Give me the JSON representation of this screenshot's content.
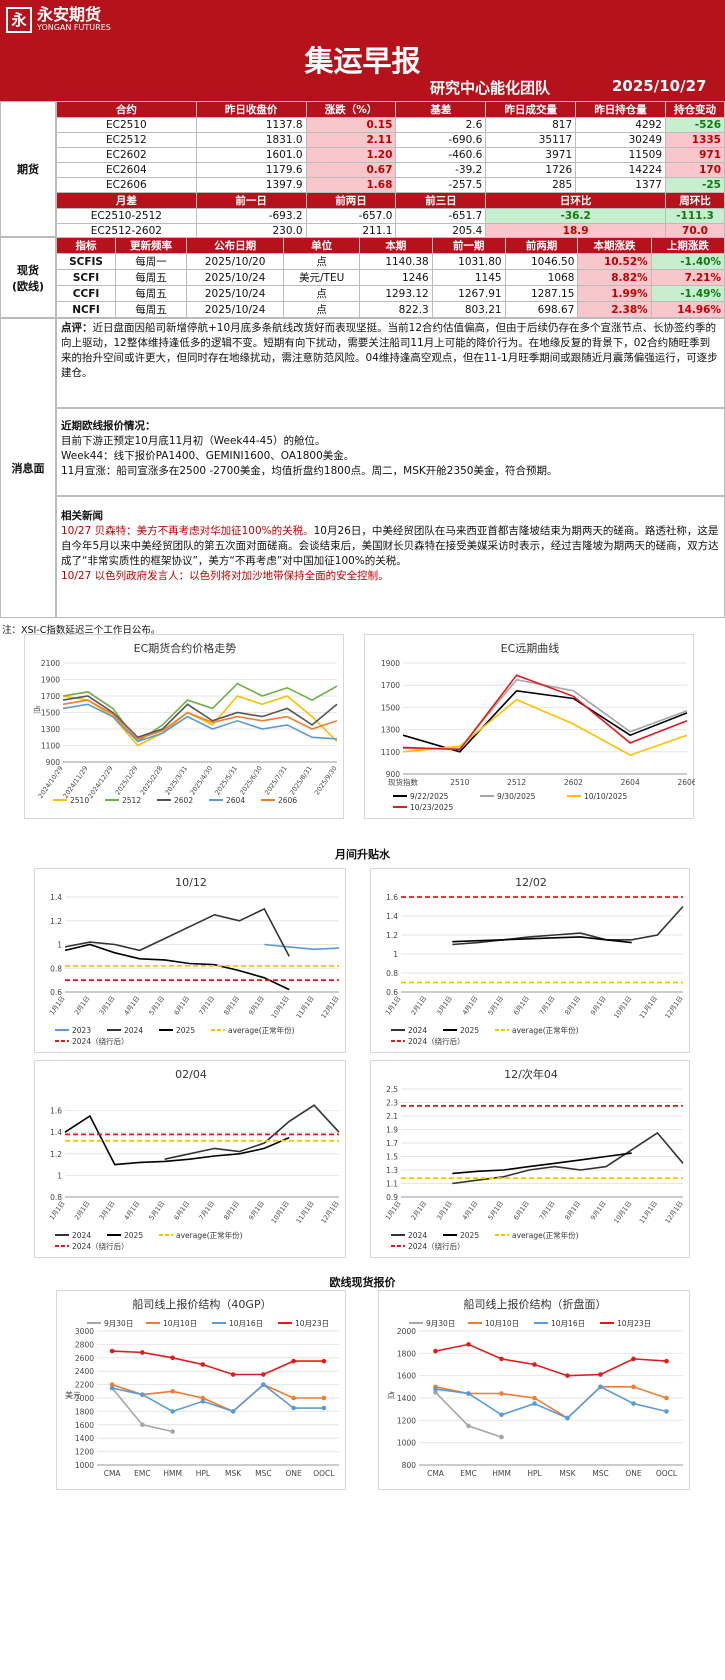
{
  "header": {
    "logo_cn": "永安期货",
    "logo_en": "YONGAN FUTURES",
    "title": "集运早报",
    "dept": "研究中心能化团队",
    "date": "2025/10/27"
  },
  "futures": {
    "side_label": "期货",
    "headers": [
      "合约",
      "昨日收盘价",
      "涨跌（%）",
      "基差",
      "昨日成交量",
      "昨日持仓量",
      "持仓变动"
    ],
    "rows": [
      [
        "EC2510",
        "1137.8",
        "0.15",
        "2.6",
        "817",
        "4292",
        "-526"
      ],
      [
        "EC2512",
        "1831.0",
        "2.11",
        "-690.6",
        "35117",
        "30249",
        "1335"
      ],
      [
        "EC2602",
        "1601.0",
        "1.20",
        "-460.6",
        "3971",
        "11509",
        "971"
      ],
      [
        "EC2604",
        "1179.6",
        "0.67",
        "-39.2",
        "1726",
        "14224",
        "170"
      ],
      [
        "EC2606",
        "1397.9",
        "1.68",
        "-257.5",
        "285",
        "1377",
        "-25"
      ]
    ],
    "spread_headers": [
      "月差",
      "前一日",
      "前两日",
      "前三日",
      "日环比",
      "周环比"
    ],
    "spreads": [
      [
        "EC2510-2512",
        "-693.2",
        "-657.0",
        "-651.7",
        "-36.2",
        "-111.3"
      ],
      [
        "EC2512-2602",
        "230.0",
        "211.1",
        "205.4",
        "18.9",
        "70.0"
      ]
    ]
  },
  "spot": {
    "side_label": "现货\n(欧线)",
    "headers": [
      "指标",
      "更新频率",
      "公布日期",
      "单位",
      "本期",
      "前一期",
      "前两期",
      "本期涨跌",
      "上期涨跌"
    ],
    "rows": [
      [
        "SCFIS",
        "每周一",
        "2025/10/20",
        "点",
        "1140.38",
        "1031.80",
        "1046.50",
        "10.52%",
        "-1.40%"
      ],
      [
        "SCFI",
        "每周五",
        "2025/10/24",
        "美元/TEU",
        "1246",
        "1145",
        "1068",
        "8.82%",
        "7.21%"
      ],
      [
        "CCFI",
        "每周五",
        "2025/10/24",
        "点",
        "1293.12",
        "1267.91",
        "1287.15",
        "1.99%",
        "-1.49%"
      ],
      [
        "NCFI",
        "每周五",
        "2025/10/24",
        "点",
        "822.3",
        "803.21",
        "698.67",
        "2.38%",
        "14.96%"
      ]
    ]
  },
  "news": {
    "side_label": "消息面",
    "comment_label": "点评：",
    "comment": "近日盘面因船司新增停航+10月底多条航线改货好而表现坚挺。当前12合约估值偏高，但由于后续仍存在多个宣涨节点、长协签约季的向上驱动，12整体维持逢低多的逻辑不变。短期有向下扰动，需要关注船司11月上可能的降价行为。在地缘反复的背景下，02合约随旺季到来的抬升空间或许更大，但同时存在地缘扰动，需注意防范风险。04维持逢高空观点，但在11-1月旺季期间或跟随近月震荡偏强运行，可逐步建仓。",
    "quote_title": "近期欧线报价情况：",
    "quote_lines": [
      "目前下游正预定10月底11月初（Week44-45）的舱位。",
      "Week44：线下报价PA1400、GEMINI1600、OA1800美金。",
      "11月宣涨：船司宣涨多在2500 -2700美金，均值折盘约1800点。周二，MSK开舱2350美金，符合预期。"
    ],
    "related_title": "相关新闻",
    "item1_red": "10/27 贝森特：美方不再考虑对华加征100%的关税。",
    "item1_body": "10月26日，中美经贸团队在马来西亚首都吉隆坡结束为期两天的磋商。路透社称，这是自今年5月以来中美经贸团队的第五次面对面磋商。会谈结束后，美国财长贝森特在接受美媒采访时表示，经过吉隆坡为期两天的磋商，双方达成了“非常实质性的框架协议”，美方“不再考虑”对中国加征100%的关税。",
    "item2_red": "10/27 以色列政府发言人：以色列将对加沙地带保持全面的安全控制。"
  },
  "note": "注：XSI-C指数延迟三个工作日公布。",
  "colors": {
    "brand": "#b5121b",
    "c2510": "#f5c000",
    "c2512": "#70ad47",
    "c2602": "#555555",
    "c2604": "#5b9bd5",
    "c2606": "#ed7d31",
    "black": "#000000",
    "grey": "#a6a6a6",
    "yellow": "#ffc000",
    "red": "#e31a1c",
    "green": "#70ad47",
    "blue": "#5b9bd5",
    "orange": "#ed7d31"
  },
  "sections": {
    "spread": "月间升贴水",
    "spot": "欧线现货报价"
  },
  "chart_data": [
    {
      "id": "ec-price",
      "type": "line",
      "title": "EC期货合约价格走势",
      "ylabel": "点",
      "ylim": [
        900,
        2100
      ],
      "yticks": [
        900,
        1100,
        1300,
        1500,
        1700,
        1900,
        2100
      ],
      "x": [
        "2024/10/29",
        "2024/11/29",
        "2024/12/29",
        "2025/1/29",
        "2025/2/28",
        "2025/3/31",
        "2025/4/30",
        "2025/5/31",
        "2025/6/30",
        "2025/7/31",
        "2025/8/31",
        "2025/9/30"
      ],
      "series": [
        {
          "name": "2510",
          "values": [
            1700,
            1650,
            1450,
            1100,
            1250,
            1500,
            1350,
            1700,
            1600,
            1700,
            1450,
            1150
          ]
        },
        {
          "name": "2512",
          "values": [
            1700,
            1750,
            1550,
            1150,
            1350,
            1650,
            1550,
            1850,
            1700,
            1800,
            1650,
            1820
          ]
        },
        {
          "name": "2602",
          "values": [
            1650,
            1700,
            1500,
            1200,
            1300,
            1600,
            1400,
            1500,
            1450,
            1550,
            1350,
            1600
          ]
        },
        {
          "name": "2604",
          "values": [
            1550,
            1600,
            1450,
            1150,
            1250,
            1450,
            1300,
            1400,
            1300,
            1350,
            1200,
            1180
          ]
        },
        {
          "name": "2606",
          "values": [
            1600,
            1650,
            1480,
            1180,
            1280,
            1500,
            1380,
            1450,
            1400,
            1450,
            1300,
            1400
          ]
        }
      ]
    },
    {
      "id": "ec-curve",
      "type": "line",
      "title": "EC远期曲线",
      "ylim": [
        900,
        1900
      ],
      "yticks": [
        900,
        1100,
        1300,
        1500,
        1700,
        1900
      ],
      "x": [
        "现货指数",
        "2510",
        "2512",
        "2602",
        "2604",
        "2606"
      ],
      "series": [
        {
          "name": "9/22/2025",
          "values": [
            1250,
            1100,
            1650,
            1580,
            1250,
            1450
          ]
        },
        {
          "name": "9/30/2025",
          "values": [
            1130,
            1130,
            1750,
            1650,
            1280,
            1470
          ]
        },
        {
          "name": "10/10/2025",
          "values": [
            1100,
            1150,
            1570,
            1350,
            1070,
            1250
          ]
        },
        {
          "name": "10/23/2025",
          "values": [
            1140,
            1120,
            1790,
            1600,
            1180,
            1380
          ]
        }
      ]
    },
    {
      "id": "spread-1012",
      "type": "line",
      "title": "10/12",
      "ylim": [
        0.6,
        1.4
      ],
      "yticks": [
        0.6,
        0.8,
        1,
        1.2,
        1.4
      ],
      "x": [
        "1月1日",
        "2月1日",
        "3月1日",
        "4月1日",
        "5月1日",
        "6月1日",
        "7月1日",
        "8月1日",
        "9月1日",
        "10月1日",
        "11月1日",
        "12月1日"
      ],
      "series": [
        {
          "name": "2023",
          "values": [
            null,
            null,
            null,
            null,
            null,
            null,
            null,
            null,
            1.0,
            0.98,
            0.96,
            0.97
          ]
        },
        {
          "name": "2024",
          "values": [
            0.98,
            1.02,
            1.0,
            0.95,
            1.05,
            1.15,
            1.25,
            1.2,
            1.3,
            0.9,
            null,
            null
          ]
        },
        {
          "name": "2025",
          "values": [
            0.95,
            1.0,
            0.93,
            0.88,
            0.87,
            0.84,
            0.83,
            0.78,
            0.72,
            0.62,
            null,
            null
          ]
        },
        {
          "name": "average(正常年份)",
          "values": [
            0.82,
            0.82,
            0.82,
            0.82,
            0.82,
            0.82,
            0.82,
            0.82,
            0.82,
            0.82,
            0.82,
            0.82
          ]
        },
        {
          "name": "2024（绕行后）",
          "values": [
            0.7,
            0.7,
            0.7,
            0.7,
            0.7,
            0.7,
            0.7,
            0.7,
            0.7,
            0.7,
            0.7,
            0.7
          ]
        }
      ]
    },
    {
      "id": "spread-1202",
      "type": "line",
      "title": "12/02",
      "ylim": [
        0.6,
        1.6
      ],
      "yticks": [
        0.6,
        0.8,
        1,
        1.2,
        1.4,
        1.6
      ],
      "x": [
        "1月1日",
        "2月1日",
        "3月1日",
        "4月1日",
        "5月1日",
        "6月1日",
        "7月1日",
        "8月1日",
        "9月1日",
        "10月1日",
        "11月1日",
        "12月1日"
      ],
      "series": [
        {
          "name": "2024",
          "values": [
            null,
            null,
            1.1,
            1.12,
            1.15,
            1.18,
            1.2,
            1.22,
            1.15,
            1.15,
            1.2,
            1.5
          ]
        },
        {
          "name": "2025",
          "values": [
            null,
            null,
            1.13,
            1.14,
            1.15,
            1.16,
            1.17,
            1.18,
            1.15,
            1.12,
            null,
            null
          ]
        },
        {
          "name": "average(正常年份)",
          "values": [
            0.7,
            0.7,
            0.7,
            0.7,
            0.7,
            0.7,
            0.7,
            0.7,
            0.7,
            0.7,
            0.7,
            0.7
          ]
        },
        {
          "name": "2024（绕行后）",
          "values": [
            1.6,
            1.6,
            1.6,
            1.6,
            1.6,
            1.6,
            1.6,
            1.6,
            1.6,
            1.6,
            1.6,
            1.6
          ]
        }
      ]
    },
    {
      "id": "spread-0204",
      "type": "line",
      "title": "02/04",
      "ylim": [
        0.8,
        1.8
      ],
      "yticks": [
        0.8,
        1,
        1.2,
        1.4,
        1.6
      ],
      "x": [
        "1月1日",
        "2月1日",
        "3月1日",
        "4月1日",
        "5月1日",
        "6月1日",
        "7月1日",
        "8月1日",
        "9月1日",
        "10月1日",
        "11月1日",
        "12月1日"
      ],
      "series": [
        {
          "name": "2024",
          "values": [
            null,
            null,
            null,
            null,
            1.15,
            1.2,
            1.25,
            1.22,
            1.3,
            1.5,
            1.65,
            1.4
          ]
        },
        {
          "name": "2025",
          "values": [
            1.4,
            1.55,
            1.1,
            1.12,
            1.13,
            1.15,
            1.18,
            1.2,
            1.25,
            1.35,
            null,
            null
          ]
        },
        {
          "name": "average(正常年份)",
          "values": [
            1.32,
            1.32,
            1.32,
            1.32,
            1.32,
            1.32,
            1.32,
            1.32,
            1.32,
            1.32,
            1.32,
            1.32
          ]
        },
        {
          "name": "2024（绕行后）",
          "values": [
            1.38,
            1.38,
            1.38,
            1.38,
            1.38,
            1.38,
            1.38,
            1.38,
            1.38,
            1.38,
            1.38,
            1.38
          ]
        }
      ]
    },
    {
      "id": "spread-12next04",
      "type": "line",
      "title": "12/次年04",
      "ylim": [
        0.9,
        2.5
      ],
      "yticks": [
        0.9,
        1.1,
        1.3,
        1.5,
        1.7,
        1.9,
        2.1,
        2.3,
        2.5
      ],
      "x": [
        "1月1日",
        "2月1日",
        "3月1日",
        "4月1日",
        "5月1日",
        "6月1日",
        "7月1日",
        "8月1日",
        "9月1日",
        "10月1日",
        "11月1日",
        "12月1日"
      ],
      "series": [
        {
          "name": "2024",
          "values": [
            null,
            null,
            1.1,
            1.15,
            1.2,
            1.3,
            1.35,
            1.3,
            1.35,
            1.6,
            1.85,
            1.4
          ]
        },
        {
          "name": "2025",
          "values": [
            null,
            null,
            1.25,
            1.28,
            1.3,
            1.35,
            1.4,
            1.45,
            1.5,
            1.55,
            null,
            null
          ]
        },
        {
          "name": "average(正常年份)",
          "values": [
            1.18,
            1.18,
            1.18,
            1.18,
            1.18,
            1.18,
            1.18,
            1.18,
            1.18,
            1.18,
            1.18,
            1.18
          ]
        },
        {
          "name": "2024（绕行后）",
          "values": [
            2.25,
            2.25,
            2.25,
            2.25,
            2.25,
            2.25,
            2.25,
            2.25,
            2.25,
            2.25,
            2.25,
            2.25
          ]
        }
      ]
    },
    {
      "id": "spot-40gp",
      "type": "line",
      "title": "船司线上报价结构（40GP）",
      "ylabel": "美元",
      "ylim": [
        1000,
        3000
      ],
      "yticks": [
        1000,
        1200,
        1400,
        1600,
        1800,
        2000,
        2200,
        2400,
        2600,
        2800,
        3000
      ],
      "x": [
        "CMA",
        "EMC",
        "HMM",
        "HPL",
        "MSK",
        "MSC",
        "ONE",
        "OOCL"
      ],
      "series": [
        {
          "name": "9月30日",
          "values": [
            2150,
            1600,
            1500,
            null,
            null,
            null,
            null,
            null
          ]
        },
        {
          "name": "10月10日",
          "values": [
            2200,
            2050,
            2100,
            2000,
            1800,
            2200,
            2000,
            2000
          ]
        },
        {
          "name": "10月16日",
          "values": [
            2150,
            2050,
            1800,
            1950,
            1800,
            2200,
            1850,
            1850
          ]
        },
        {
          "name": "10月23日",
          "values": [
            2700,
            2680,
            2600,
            2500,
            2350,
            2350,
            2550,
            2550
          ]
        }
      ]
    },
    {
      "id": "spot-index",
      "type": "line",
      "title": "船司线上报价结构（折盘面）",
      "ylabel": "点",
      "ylim": [
        800,
        2000
      ],
      "yticks": [
        800,
        1000,
        1200,
        1400,
        1600,
        1800,
        2000
      ],
      "x": [
        "CMA",
        "EMC",
        "HMM",
        "HPL",
        "MSK",
        "MSC",
        "ONE",
        "OOCL"
      ],
      "series": [
        {
          "name": "9月30日",
          "values": [
            1450,
            1150,
            1050,
            null,
            null,
            null,
            null,
            null
          ]
        },
        {
          "name": "10月10日",
          "values": [
            1500,
            1440,
            1440,
            1400,
            1220,
            1500,
            1500,
            1400
          ]
        },
        {
          "name": "10月16日",
          "values": [
            1480,
            1440,
            1250,
            1350,
            1220,
            1500,
            1350,
            1280
          ]
        },
        {
          "name": "10月23日",
          "values": [
            1820,
            1880,
            1750,
            1700,
            1600,
            1610,
            1750,
            1730
          ]
        }
      ]
    }
  ]
}
